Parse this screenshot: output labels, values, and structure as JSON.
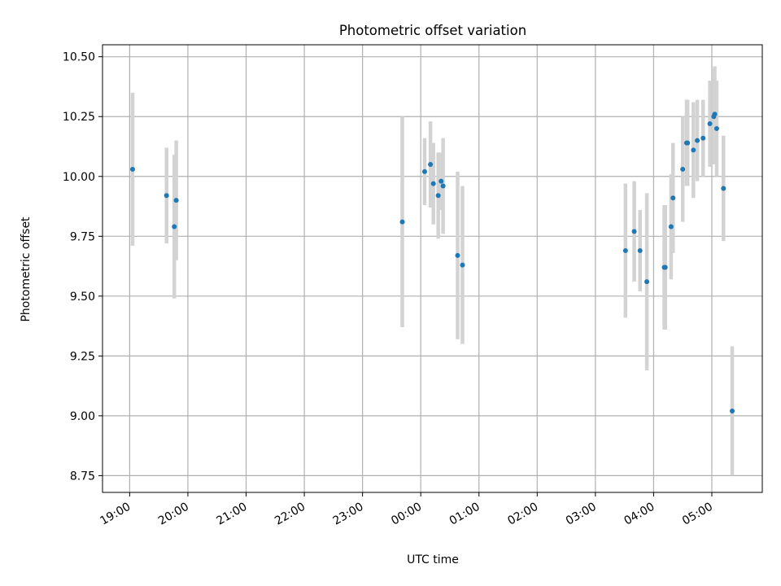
{
  "chart_data": {
    "type": "scatter",
    "title": "Photometric offset variation",
    "xlabel": "UTC time",
    "ylabel": "Photometric offset",
    "grid": true,
    "legend": "none",
    "x_tick_labels": [
      "19:00",
      "20:00",
      "21:00",
      "22:00",
      "23:00",
      "00:00",
      "01:00",
      "02:00",
      "03:00",
      "04:00",
      "05:00"
    ],
    "y_tick_labels": [
      "8.75",
      "9.00",
      "9.25",
      "9.50",
      "9.75",
      "10.00",
      "10.25",
      "10.50"
    ],
    "x_ticks": [
      "19:00",
      "20:00",
      "21:00",
      "22:00",
      "23:00",
      "00:00",
      "01:00",
      "02:00",
      "03:00",
      "04:00",
      "05:00"
    ],
    "y_ticks": [
      8.75,
      9.0,
      9.25,
      9.5,
      9.75,
      10.0,
      10.25,
      10.5
    ],
    "xlim": [
      "18:32",
      "05:52"
    ],
    "ylim": [
      8.68,
      10.55
    ],
    "colors": {
      "point": "#1f77b4",
      "errorbar": "#d3d3d3",
      "grid": "#b0b0b0"
    },
    "points": [
      {
        "x": "19:03",
        "y": 10.03,
        "err": 0.32
      },
      {
        "x": "19:38",
        "y": 9.92,
        "err": 0.2
      },
      {
        "x": "19:46",
        "y": 9.79,
        "err": 0.3
      },
      {
        "x": "19:48",
        "y": 9.9,
        "err": 0.25
      },
      {
        "x": "23:41",
        "y": 9.81,
        "err": 0.44
      },
      {
        "x": "00:04",
        "y": 10.02,
        "err": 0.14
      },
      {
        "x": "00:10",
        "y": 10.05,
        "err": 0.18
      },
      {
        "x": "00:13",
        "y": 9.97,
        "err": 0.17
      },
      {
        "x": "00:18",
        "y": 9.92,
        "err": 0.18
      },
      {
        "x": "00:21",
        "y": 9.98,
        "err": 0.12
      },
      {
        "x": "00:23",
        "y": 9.96,
        "err": 0.2
      },
      {
        "x": "00:38",
        "y": 9.67,
        "err": 0.35
      },
      {
        "x": "00:43",
        "y": 9.63,
        "err": 0.33
      },
      {
        "x": "03:31",
        "y": 9.69,
        "err": 0.28
      },
      {
        "x": "03:40",
        "y": 9.77,
        "err": 0.21
      },
      {
        "x": "03:46",
        "y": 9.69,
        "err": 0.17
      },
      {
        "x": "03:53",
        "y": 9.56,
        "err": 0.37
      },
      {
        "x": "04:11",
        "y": 9.62,
        "err": 0.26
      },
      {
        "x": "04:12",
        "y": 9.62,
        "err": 0.26
      },
      {
        "x": "04:18",
        "y": 9.79,
        "err": 0.22
      },
      {
        "x": "04:20",
        "y": 9.91,
        "err": 0.23
      },
      {
        "x": "04:30",
        "y": 10.03,
        "err": 0.22
      },
      {
        "x": "04:34",
        "y": 10.14,
        "err": 0.18
      },
      {
        "x": "04:35",
        "y": 10.14,
        "err": 0.18
      },
      {
        "x": "04:41",
        "y": 10.11,
        "err": 0.2
      },
      {
        "x": "04:45",
        "y": 10.15,
        "err": 0.17
      },
      {
        "x": "04:51",
        "y": 10.16,
        "err": 0.16
      },
      {
        "x": "04:58",
        "y": 10.22,
        "err": 0.18
      },
      {
        "x": "05:02",
        "y": 10.25,
        "err": 0.2
      },
      {
        "x": "05:03",
        "y": 10.26,
        "err": 0.2
      },
      {
        "x": "05:05",
        "y": 10.2,
        "err": 0.2
      },
      {
        "x": "05:12",
        "y": 9.95,
        "err": 0.22
      },
      {
        "x": "05:21",
        "y": 9.02,
        "err": 0.27
      }
    ]
  }
}
